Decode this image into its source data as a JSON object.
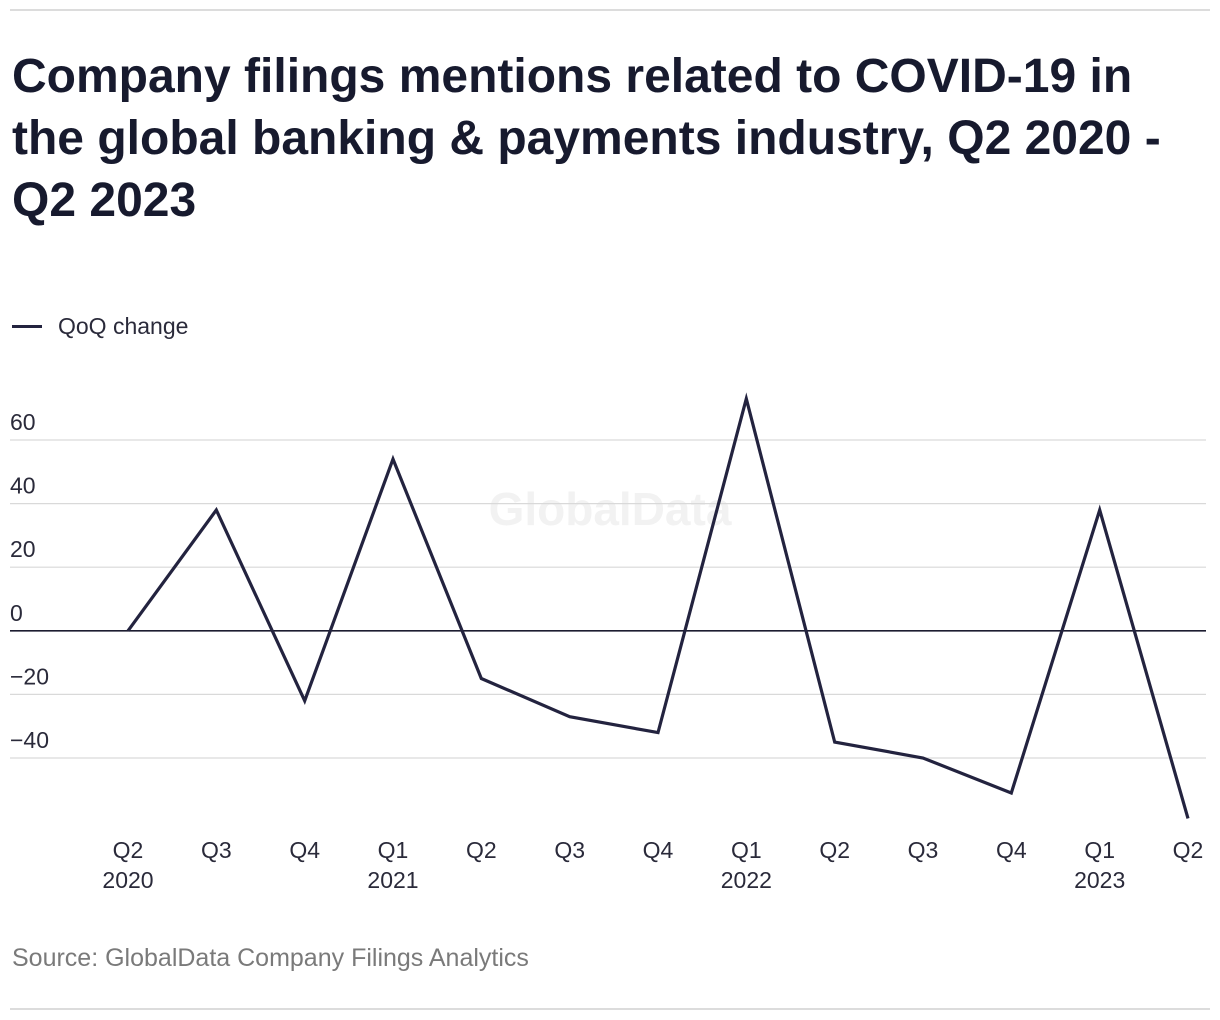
{
  "title": "Company filings mentions related to COVID-19 in the global banking & payments industry, Q2 2020 - Q2 2023",
  "source": "Source: GlobalData Company Filings Analytics",
  "watermark": "GlobalData",
  "colors": {
    "line": "#23233f",
    "grid": "#d9d9d9",
    "zero": "#1c1c30"
  },
  "chart_data": {
    "type": "line",
    "title": "Company filings mentions related to COVID-19 in the global banking & payments industry, Q2 2020 - Q2 2023",
    "xlabel": "",
    "ylabel": "",
    "ylim": [
      -60,
      73
    ],
    "yticks": [
      60,
      40,
      20,
      0,
      -20,
      -40
    ],
    "ytick_labels": [
      "60",
      "40",
      "20",
      "0",
      "−20",
      "−40"
    ],
    "categories": [
      "Q2",
      "Q3",
      "Q4",
      "Q1",
      "Q2",
      "Q3",
      "Q4",
      "Q1",
      "Q2",
      "Q3",
      "Q4",
      "Q1",
      "Q2"
    ],
    "category_years": [
      "2020",
      "",
      "",
      "2021",
      "",
      "",
      "",
      "2022",
      "",
      "",
      "",
      "2023",
      ""
    ],
    "legend": "top-left",
    "grid": true,
    "series": [
      {
        "name": "QoQ change",
        "values": [
          0,
          38,
          -22,
          54,
          -15,
          -27,
          -32,
          73,
          -35,
          -40,
          -51,
          38,
          -59
        ]
      }
    ]
  }
}
